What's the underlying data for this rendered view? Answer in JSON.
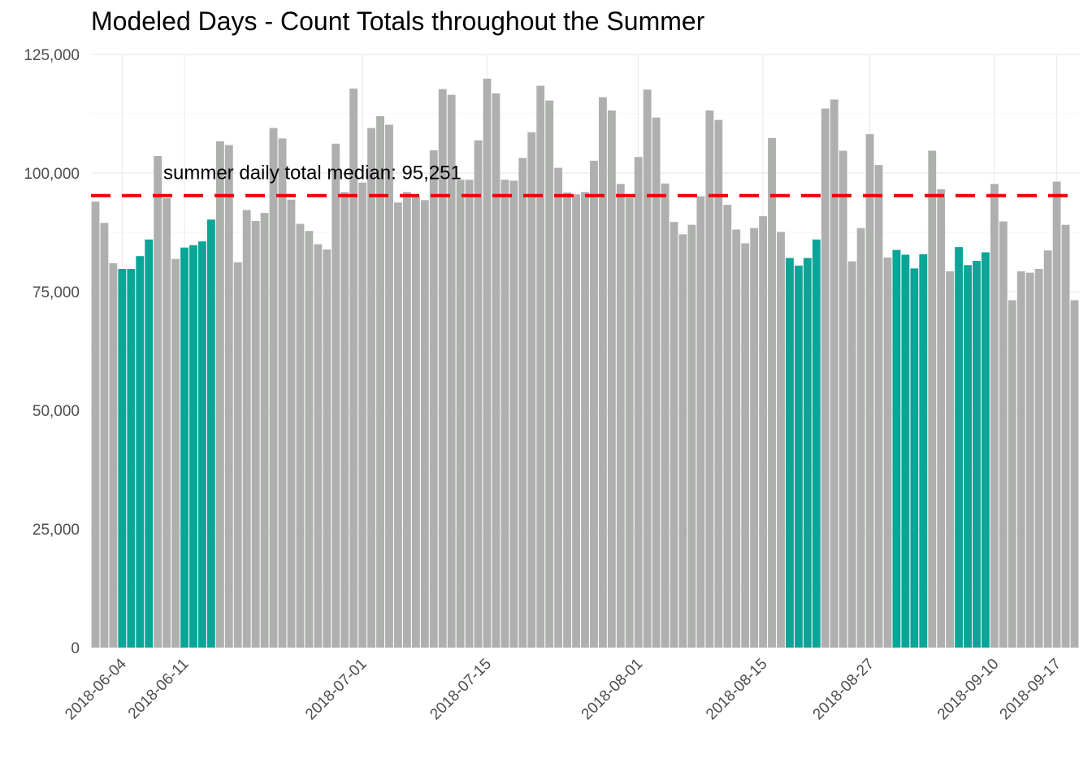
{
  "chart_data": {
    "type": "bar",
    "title": "Modeled Days - Count Totals throughout the Summer",
    "xlabel": "",
    "ylabel": "",
    "start_date": "2018-06-01",
    "ylim": [
      0,
      125000
    ],
    "y_ticks": [
      0,
      25000,
      50000,
      75000,
      100000,
      125000
    ],
    "y_tick_labels": [
      "0",
      "25,000",
      "50,000",
      "75,000",
      "100,000",
      "125,000"
    ],
    "x_tick_labels": [
      "2018-06-04",
      "2018-06-11",
      "2018-07-01",
      "2018-07-15",
      "2018-08-01",
      "2018-08-15",
      "2018-08-27",
      "2018-09-10",
      "2018-09-17"
    ],
    "grid": true,
    "colors": {
      "default": "#aeb0ae",
      "modeled": "#0aa597",
      "median_line": "#ee0000",
      "grid": "#ebebeb"
    },
    "median": {
      "value": 95251,
      "label": "summer daily total median: 95,251"
    },
    "values": [
      94000,
      89500,
      81000,
      79800,
      79800,
      82500,
      86000,
      103600,
      94700,
      81900,
      84300,
      84800,
      85600,
      90200,
      106700,
      105900,
      81200,
      92200,
      89900,
      91600,
      109500,
      107300,
      94400,
      89300,
      87800,
      85000,
      83900,
      106200,
      96000,
      117800,
      98000,
      109500,
      112000,
      110200,
      93800,
      96000,
      95100,
      94300,
      104800,
      117700,
      116500,
      98600,
      98600,
      106900,
      119900,
      116800,
      98600,
      98400,
      103200,
      108600,
      118400,
      115300,
      101100,
      95900,
      95500,
      96000,
      102600,
      116000,
      113200,
      97700,
      94800,
      103400,
      117600,
      111700,
      97800,
      89700,
      87100,
      89100,
      95100,
      113200,
      111200,
      93300,
      88100,
      85200,
      88400,
      90900,
      107400,
      87600,
      82100,
      80500,
      82100,
      86000,
      113600,
      115500,
      104700,
      81400,
      88400,
      108200,
      101700,
      82200,
      83800,
      82800,
      79900,
      82900,
      104700,
      96600,
      79300,
      84400,
      80600,
      81500,
      83300,
      97700,
      89800,
      73200,
      79300,
      79000,
      79800,
      83700,
      98200,
      89100,
      73200
    ],
    "highlighted": [
      false,
      false,
      false,
      true,
      true,
      true,
      true,
      false,
      false,
      false,
      true,
      true,
      true,
      true,
      false,
      false,
      false,
      false,
      false,
      false,
      false,
      false,
      false,
      false,
      false,
      false,
      false,
      false,
      false,
      false,
      false,
      false,
      false,
      false,
      false,
      false,
      false,
      false,
      false,
      false,
      false,
      false,
      false,
      false,
      false,
      false,
      false,
      false,
      false,
      false,
      false,
      false,
      false,
      false,
      false,
      false,
      false,
      false,
      false,
      false,
      false,
      false,
      false,
      false,
      false,
      false,
      false,
      false,
      false,
      false,
      false,
      false,
      false,
      false,
      false,
      false,
      false,
      false,
      true,
      true,
      true,
      true,
      false,
      false,
      false,
      false,
      false,
      false,
      false,
      false,
      true,
      true,
      true,
      true,
      false,
      false,
      false,
      true,
      true,
      true,
      true,
      false,
      false,
      false,
      false,
      false,
      false,
      false,
      false,
      false,
      false
    ]
  }
}
